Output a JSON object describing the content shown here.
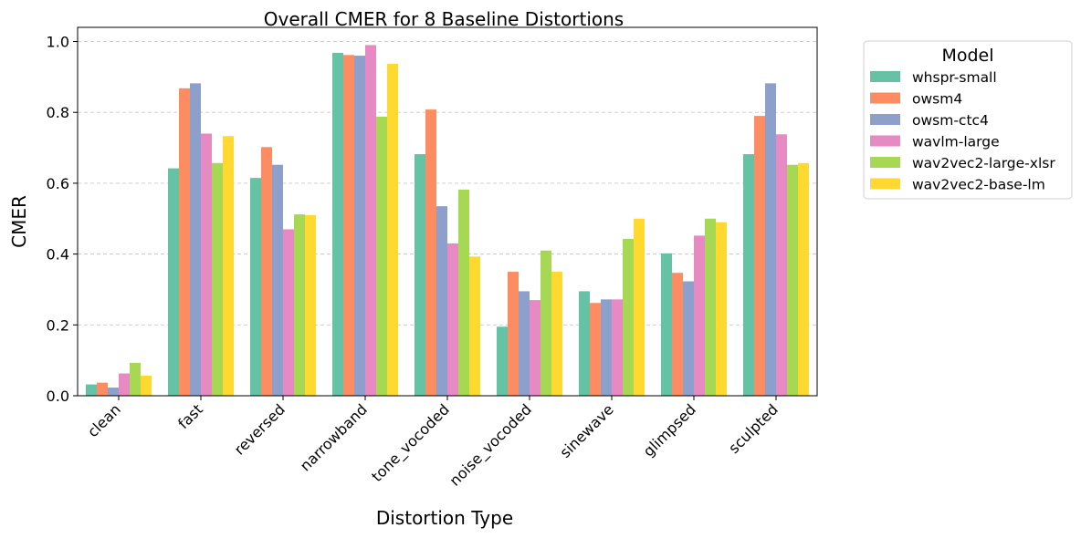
{
  "chart_data": {
    "type": "bar",
    "title": "Overall CMER for 8 Baseline Distortions",
    "xlabel": "Distortion Type",
    "ylabel": "CMER",
    "ylim": [
      0,
      1.04
    ],
    "yticks": [
      0.0,
      0.2,
      0.4,
      0.6,
      0.8,
      1.0
    ],
    "ytick_labels": [
      "0.0",
      "0.2",
      "0.4",
      "0.6",
      "0.8",
      "1.0"
    ],
    "grid": "y-dashed",
    "legend": {
      "title": "Model",
      "placement": "outside-top-right"
    },
    "categories": [
      "clean",
      "fast",
      "reversed",
      "narrowband",
      "tone_vocoded",
      "noise_vocoded",
      "sinewave",
      "glimpsed",
      "sculpted"
    ],
    "series": [
      {
        "name": "whspr-small",
        "color": "#66c2a5",
        "values": [
          0.032,
          0.642,
          0.615,
          0.968,
          0.682,
          0.195,
          0.295,
          0.402,
          0.682
        ]
      },
      {
        "name": "owsm4",
        "color": "#fc8d62",
        "values": [
          0.037,
          0.868,
          0.702,
          0.962,
          0.808,
          0.35,
          0.262,
          0.347,
          0.79
        ]
      },
      {
        "name": "owsm-ctc4",
        "color": "#8da0cb",
        "values": [
          0.023,
          0.882,
          0.652,
          0.96,
          0.535,
          0.295,
          0.272,
          0.323,
          0.882
        ]
      },
      {
        "name": "wavlm-large",
        "color": "#e78ac3",
        "values": [
          0.063,
          0.74,
          0.47,
          0.99,
          0.43,
          0.27,
          0.272,
          0.452,
          0.738
        ]
      },
      {
        "name": "wav2vec2-large-xlsr",
        "color": "#a6d854",
        "values": [
          0.093,
          0.657,
          0.512,
          0.788,
          0.582,
          0.41,
          0.443,
          0.5,
          0.652
        ]
      },
      {
        "name": "wav2vec2-base-lm",
        "color": "#ffd92f",
        "values": [
          0.057,
          0.733,
          0.51,
          0.937,
          0.393,
          0.35,
          0.5,
          0.49,
          0.657
        ]
      }
    ]
  }
}
